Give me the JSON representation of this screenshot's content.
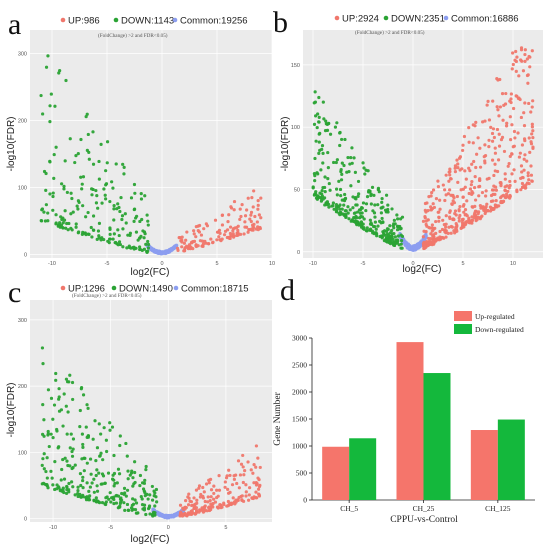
{
  "panel_letters": [
    "a",
    "b",
    "c",
    "d"
  ],
  "colors": {
    "up": "#f0776c",
    "down": "#2aa334",
    "common": "#8c9ef0",
    "panel_bg": "#ebebeb",
    "grid": "#ffffff",
    "bar_up": "#f5756b",
    "bar_down": "#14b83c"
  },
  "volcano_common": {
    "criterion": "(FoldChange) >2 and FDR<0.05)",
    "xlabel": "log2(FC)",
    "ylabel": "-log10(FDR)"
  },
  "chart_data": [
    {
      "type": "scatter",
      "panel": "a",
      "legend": [
        {
          "key": "up",
          "label": "UP:986"
        },
        {
          "key": "down",
          "label": "DOWN:1143"
        },
        {
          "key": "common",
          "label": "Common:19256"
        }
      ],
      "xlim": [
        -12,
        10
      ],
      "ylim": [
        -5,
        335
      ],
      "xticks": [
        -10,
        -5,
        0,
        5,
        10
      ],
      "yticks": [
        0,
        100,
        200,
        300
      ],
      "seed": 11,
      "n_up": 150,
      "n_down": 220,
      "up_x": [
        1.2,
        9
      ],
      "down_x": [
        -11,
        -1.2
      ],
      "up_scale": 45,
      "down_scale": 160
    },
    {
      "type": "scatter",
      "panel": "b",
      "legend": [
        {
          "key": "up",
          "label": "UP:2924"
        },
        {
          "key": "down",
          "label": "DOWN:2351"
        },
        {
          "key": "common",
          "label": "Common:16886"
        }
      ],
      "xlim": [
        -11,
        13
      ],
      "ylim": [
        -5,
        178
      ],
      "xticks": [
        -10,
        -5,
        0,
        5,
        10
      ],
      "yticks": [
        0,
        50,
        100,
        150
      ],
      "seed": 23,
      "n_up": 520,
      "n_down": 360,
      "up_x": [
        1.0,
        12
      ],
      "down_x": [
        -10,
        -1.0
      ],
      "up_scale": 75,
      "down_scale": 55
    },
    {
      "type": "scatter",
      "panel": "c",
      "legend": [
        {
          "key": "up",
          "label": "UP:1296"
        },
        {
          "key": "down",
          "label": "DOWN:1490"
        },
        {
          "key": "common",
          "label": "Common:18715"
        }
      ],
      "xlim": [
        -12,
        9
      ],
      "ylim": [
        -5,
        330
      ],
      "xticks": [
        -10,
        -5,
        0,
        5
      ],
      "yticks": [
        0,
        100,
        200,
        300
      ],
      "seed": 37,
      "n_up": 200,
      "n_down": 300,
      "up_x": [
        1.0,
        8
      ],
      "down_x": [
        -11,
        -1.0
      ],
      "up_scale": 60,
      "down_scale": 130
    },
    {
      "type": "bar",
      "panel": "d",
      "categories": [
        "CH_5",
        "CH_25",
        "CH_125"
      ],
      "series": [
        {
          "name": "Up-regulated",
          "values": [
            986,
            2924,
            1296
          ]
        },
        {
          "name": "Down-regulated",
          "values": [
            1143,
            2351,
            1490
          ]
        }
      ],
      "xlabel": "CPPU-vs-Control",
      "ylabel": "Gene Number",
      "ylim": [
        0,
        3000
      ],
      "yticks": [
        0,
        500,
        1000,
        1500,
        2000,
        2500,
        3000
      ],
      "legend_position": "top-right"
    }
  ]
}
